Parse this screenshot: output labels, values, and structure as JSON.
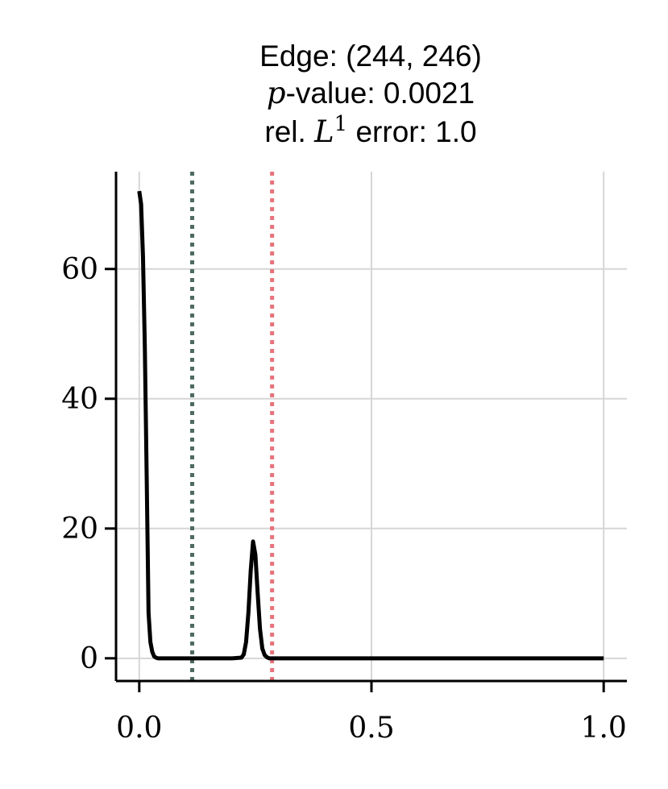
{
  "chart_data": {
    "type": "line",
    "title_lines": {
      "edge": "Edge: (244, 246)",
      "pvalue_var": "p",
      "pvalue_rest": "-value: 0.0021",
      "error_prefix": "rel. ",
      "error_var": "L",
      "error_sup": "1",
      "error_rest": " error: 1.0"
    },
    "xlabel": "",
    "ylabel": "",
    "xlim": [
      -0.05,
      1.05
    ],
    "ylim": [
      -3.5,
      75
    ],
    "xticks": [
      0.0,
      0.5,
      1.0
    ],
    "xtick_labels": [
      "0.0",
      "0.5",
      "1.0"
    ],
    "yticks": [
      0,
      20,
      40,
      60
    ],
    "ytick_labels": [
      "0",
      "20",
      "40",
      "60"
    ],
    "grid": true,
    "series": [
      {
        "color": "#000000",
        "x": [
          0.0,
          0.004,
          0.008,
          0.012,
          0.016,
          0.02,
          0.024,
          0.028,
          0.032,
          0.036,
          0.04,
          0.05,
          0.1,
          0.15,
          0.2,
          0.22,
          0.225,
          0.23,
          0.235,
          0.24,
          0.245,
          0.25,
          0.255,
          0.26,
          0.265,
          0.27,
          0.275,
          0.28,
          0.3,
          0.4,
          0.5,
          0.6,
          0.7,
          0.8,
          0.9,
          1.0
        ],
        "y": [
          72,
          70,
          62,
          48,
          28,
          7,
          2.5,
          1.0,
          0.3,
          0.1,
          0.0,
          0.0,
          0.0,
          0.0,
          0.0,
          0.1,
          0.6,
          2.5,
          7.0,
          13.5,
          18,
          16.0,
          10.0,
          4.5,
          1.5,
          0.5,
          0.15,
          0.0,
          0.0,
          0.0,
          0.0,
          0.0,
          0.0,
          0.0,
          0.0,
          0.0
        ]
      }
    ],
    "vlines": [
      {
        "x": 0.114,
        "color": "#4d6b5e",
        "style": "dotted"
      },
      {
        "x": 0.286,
        "color": "#e8737a",
        "style": "dotted"
      }
    ]
  }
}
